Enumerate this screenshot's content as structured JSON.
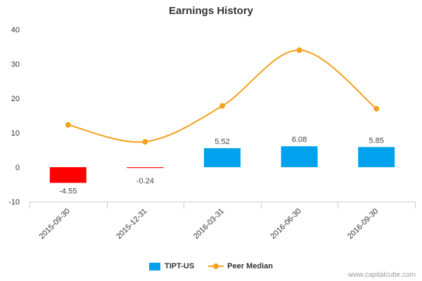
{
  "chart_data": {
    "type": "bar",
    "title": "Earnings History",
    "categories": [
      "2015-09-30",
      "2015-12-31",
      "2016-03-31",
      "2016-06-30",
      "2016-09-30"
    ],
    "series": [
      {
        "name": "TIPT-US",
        "type": "bar",
        "values": [
          -4.55,
          -0.24,
          5.52,
          6.08,
          5.85
        ],
        "labels": [
          "-4.55",
          "-0.24",
          "5.52",
          "6.08",
          "5.85"
        ]
      },
      {
        "name": "Peer Median",
        "type": "line",
        "values": [
          12.3,
          7.4,
          17.8,
          34,
          17
        ]
      }
    ],
    "ylim": [
      -10,
      40
    ],
    "yticks": [
      -10,
      0,
      10,
      20,
      30,
      40
    ],
    "xlabel": "",
    "ylabel": "",
    "grid": false,
    "legend_position": "bottom"
  },
  "colors": {
    "positive_bar": "#00a2ed",
    "negative_bar": "#ff0000",
    "line": "#f4a11d",
    "axis": "#cccccc",
    "tick_label": "#333333",
    "data_label": "#444444"
  },
  "credit": "www.capitalcube.com"
}
